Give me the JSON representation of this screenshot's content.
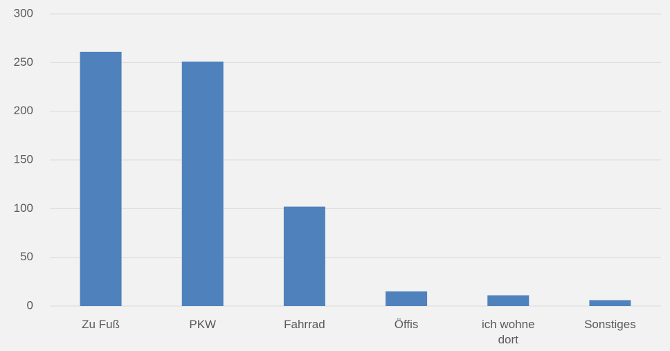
{
  "chart_data": {
    "type": "bar",
    "categories": [
      "Zu Fuß",
      "PKW",
      "Fahrrad",
      "Öffis",
      "ich wohne dort",
      "Sonstiges"
    ],
    "values": [
      261,
      251,
      102,
      15,
      11,
      6
    ],
    "color": "#4f81bd",
    "ylim": [
      0,
      300
    ],
    "yticks": [
      0,
      50,
      100,
      150,
      200,
      250,
      300
    ],
    "grid": true
  }
}
